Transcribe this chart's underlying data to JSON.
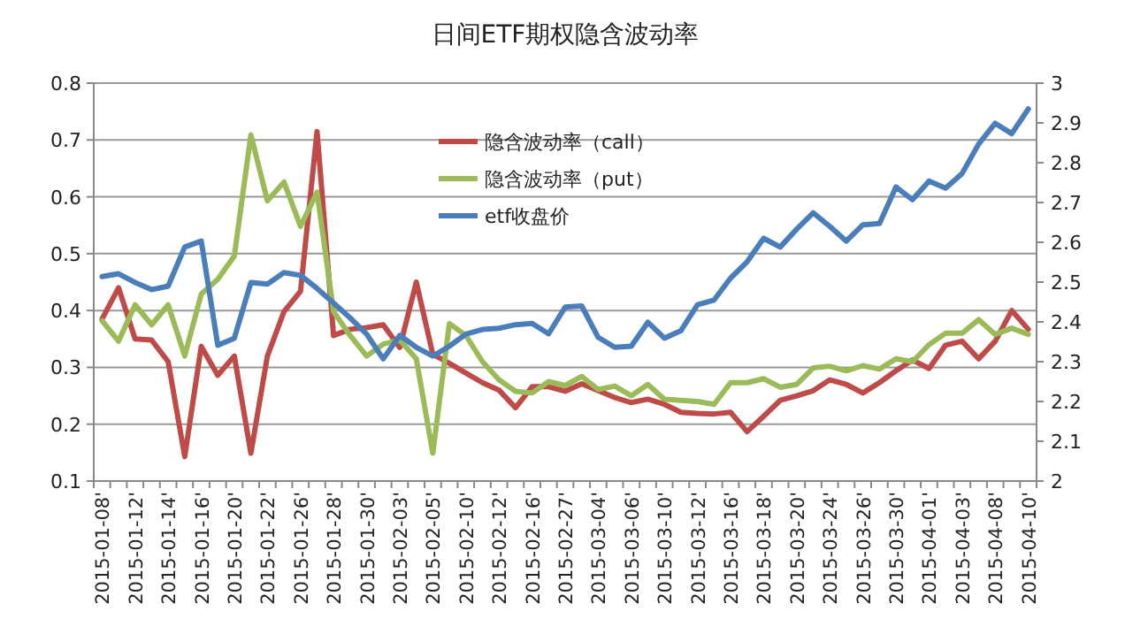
{
  "chart_data": {
    "type": "line",
    "title": "日间ETF期权隐含波动率",
    "categories": [
      "2015-01-08'",
      null,
      "2015-01-12'",
      null,
      "2015-01-14'",
      null,
      "2015-01-16'",
      null,
      "2015-01-20'",
      null,
      "2015-01-22'",
      null,
      "2015-01-26'",
      null,
      "2015-01-28'",
      null,
      "2015-01-30'",
      null,
      "2015-02-03'",
      null,
      "2015-02-05'",
      null,
      "2015-02-10'",
      null,
      "2015-02-12'",
      null,
      "2015-02-16'",
      null,
      "2015-02-27'",
      null,
      "2015-03-04'",
      null,
      "2015-03-06'",
      null,
      "2015-03-10'",
      null,
      "2015-03-12'",
      null,
      "2015-03-16'",
      null,
      "2015-03-18'",
      null,
      "2015-03-20'",
      null,
      "2015-03-24'",
      null,
      "2015-03-26'",
      null,
      "2015-03-30'",
      null,
      "2015-04-01'",
      null,
      "2015-04-03'",
      null,
      "2015-04-08'",
      null,
      "2015-04-10'"
    ],
    "series": [
      {
        "name": "隐含波动率（call）",
        "color": "#be4b48",
        "values": [
          0.385,
          0.44,
          0.35,
          0.348,
          0.31,
          0.143,
          0.337,
          0.286,
          0.32,
          0.149,
          0.32,
          0.398,
          0.434,
          0.715,
          0.356,
          0.367,
          0.37,
          0.375,
          0.335,
          0.45,
          0.323,
          0.307,
          0.29,
          0.273,
          0.26,
          0.229,
          0.266,
          0.266,
          0.258,
          0.271,
          0.259,
          0.247,
          0.238,
          0.244,
          0.235,
          0.221,
          0.219,
          0.218,
          0.221,
          0.187,
          0.214,
          0.242,
          0.25,
          0.259,
          0.278,
          0.27,
          0.255,
          0.273,
          0.294,
          0.313,
          0.298,
          0.339,
          0.346,
          0.315,
          0.346,
          0.4,
          0.367
        ]
      },
      {
        "name": "隐含波动率（put）",
        "color": "#9bbb59",
        "values": [
          0.382,
          0.346,
          0.41,
          0.375,
          0.41,
          0.32,
          0.429,
          0.455,
          0.496,
          0.709,
          0.593,
          0.626,
          0.548,
          0.608,
          0.398,
          0.356,
          0.32,
          0.341,
          0.348,
          0.315,
          0.149,
          0.377,
          0.356,
          0.31,
          0.278,
          0.258,
          0.255,
          0.275,
          0.268,
          0.284,
          0.261,
          0.267,
          0.25,
          0.27,
          0.244,
          0.242,
          0.24,
          0.235,
          0.273,
          0.273,
          0.28,
          0.265,
          0.27,
          0.299,
          0.302,
          0.294,
          0.303,
          0.297,
          0.315,
          0.31,
          0.34,
          0.36,
          0.36,
          0.384,
          0.358,
          0.369,
          0.358
        ]
      },
      {
        "name": "etf收盘价",
        "color": "#4a7ebb",
        "axis": "y2",
        "values": [
          2.514,
          2.521,
          2.499,
          2.481,
          2.49,
          2.588,
          2.603,
          2.341,
          2.359,
          2.499,
          2.495,
          2.524,
          2.517,
          2.484,
          2.447,
          2.41,
          2.369,
          2.307,
          2.366,
          2.336,
          2.314,
          2.339,
          2.369,
          2.381,
          2.384,
          2.393,
          2.396,
          2.37,
          2.437,
          2.44,
          2.361,
          2.336,
          2.339,
          2.399,
          2.359,
          2.378,
          2.443,
          2.455,
          2.51,
          2.551,
          2.61,
          2.588,
          2.633,
          2.674,
          2.64,
          2.603,
          2.644,
          2.647,
          2.739,
          2.707,
          2.754,
          2.736,
          2.773,
          2.847,
          2.899,
          2.873,
          2.935
        ]
      }
    ],
    "ylim": [
      0.1,
      0.8
    ],
    "yticks": [
      0.1,
      0.2,
      0.3,
      0.4,
      0.5,
      0.6,
      0.7,
      0.8
    ],
    "y2lim": [
      2,
      3
    ],
    "y2ticks": [
      2,
      2.1,
      2.2,
      2.3,
      2.4,
      2.5,
      2.6,
      2.7,
      2.8,
      2.9,
      3
    ],
    "grid": "y",
    "legend": "top",
    "marker": "none",
    "line_style": "solid"
  }
}
